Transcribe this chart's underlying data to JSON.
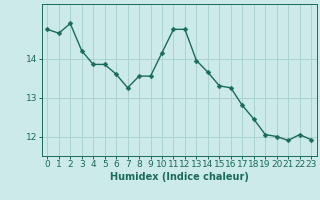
{
  "x": [
    0,
    1,
    2,
    3,
    4,
    5,
    6,
    7,
    8,
    9,
    10,
    11,
    12,
    13,
    14,
    15,
    16,
    17,
    18,
    19,
    20,
    21,
    22,
    23
  ],
  "y": [
    14.75,
    14.65,
    14.9,
    14.2,
    13.85,
    13.85,
    13.6,
    13.25,
    13.55,
    13.55,
    14.15,
    14.75,
    14.75,
    13.95,
    13.65,
    13.3,
    13.25,
    12.8,
    12.45,
    12.05,
    12.0,
    11.9,
    12.05,
    11.92
  ],
  "line_color": "#1a6b5a",
  "marker": "D",
  "markersize": 2.5,
  "linewidth": 1.0,
  "bg_color": "#cceae7",
  "grid_color": "#aad4cf",
  "xlabel": "Humidex (Indice chaleur)",
  "xlabel_fontsize": 7,
  "tick_fontsize": 6.5,
  "yticks": [
    12,
    13,
    14
  ],
  "ylim": [
    11.5,
    15.4
  ],
  "xlim": [
    -0.5,
    23.5
  ]
}
